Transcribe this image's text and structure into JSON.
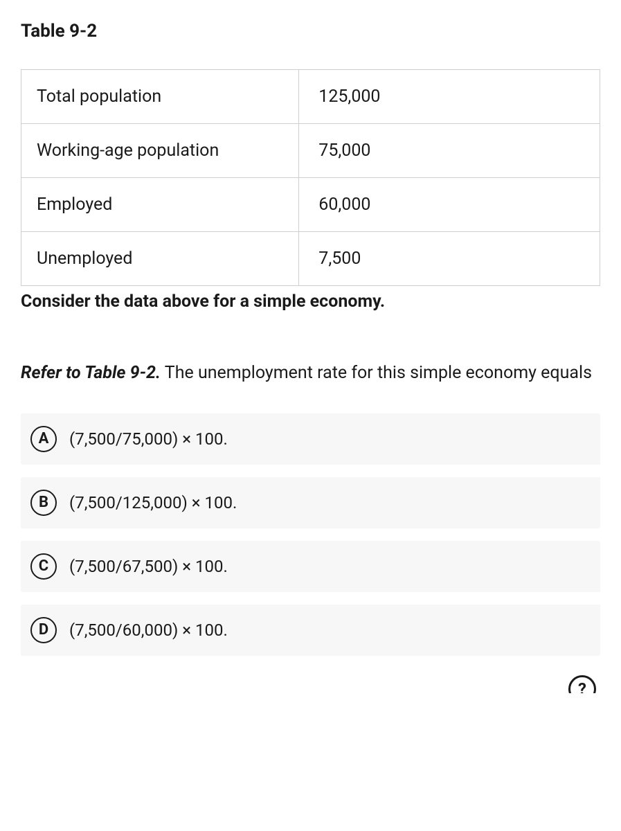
{
  "title": "Table 9-2",
  "table": {
    "rows": [
      {
        "label": "Total population",
        "value": "125,000"
      },
      {
        "label": "Working-age population",
        "value": "75,000"
      },
      {
        "label": "Employed",
        "value": "60,000"
      },
      {
        "label": "Unemployed",
        "value": "7,500"
      }
    ]
  },
  "caption": "Consider the data above for a simple economy.",
  "question": {
    "ref": "Refer to Table 9-2.",
    "body": " The unemployment rate for this simple economy equals"
  },
  "options": [
    {
      "letter": "A",
      "text": "(7,500/75,000) × 100."
    },
    {
      "letter": "B",
      "text": "(7,500/125,000) × 100."
    },
    {
      "letter": "C",
      "text": "(7,500/67,500) × 100."
    },
    {
      "letter": "D",
      "text": "(7,500/60,000) × 100."
    }
  ],
  "footer_icon_glyph": "?"
}
